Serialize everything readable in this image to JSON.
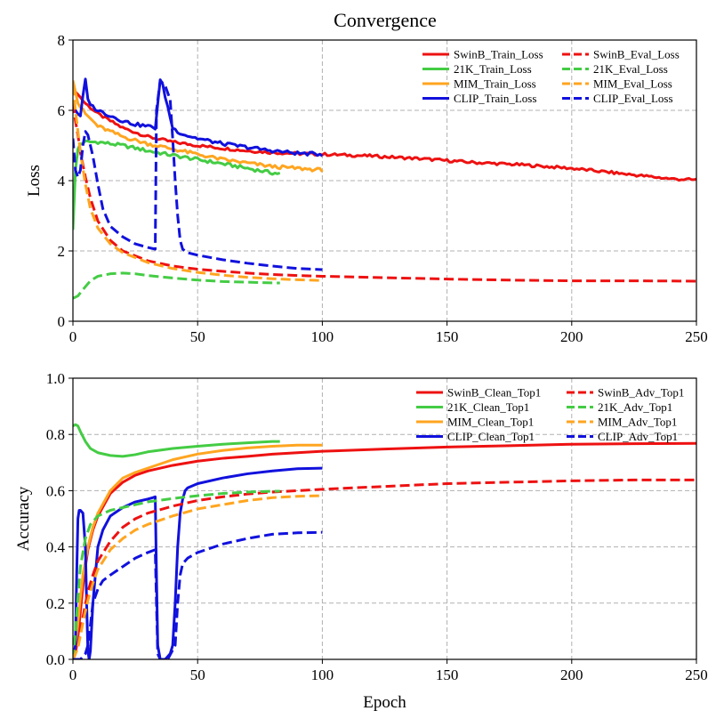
{
  "title": "Convergence",
  "colors": {
    "SwinB": "#ee1111",
    "21K": "#44cc44",
    "MIM": "#ffa520",
    "CLIP": "#1111dd"
  },
  "chart_data": [
    {
      "type": "line",
      "title": "Convergence",
      "xlabel": "",
      "ylabel": "Loss",
      "xlim": [
        0,
        250
      ],
      "ylim": [
        0,
        8
      ],
      "xticks": [
        0,
        50,
        100,
        150,
        200,
        250
      ],
      "yticks": [
        0,
        2,
        4,
        6,
        8
      ],
      "grid": true,
      "legend_position": "top-right",
      "series": [
        {
          "name": "SwinB_Train_Loss",
          "model": "SwinB",
          "style": "solid",
          "x": [
            0,
            2,
            5,
            10,
            20,
            30,
            40,
            50,
            60,
            70,
            80,
            90,
            100,
            120,
            140,
            160,
            180,
            200,
            220,
            240,
            250
          ],
          "y": [
            6.6,
            6.45,
            6.2,
            5.9,
            5.5,
            5.25,
            5.1,
            5.0,
            4.92,
            4.85,
            4.8,
            4.77,
            4.75,
            4.7,
            4.62,
            4.52,
            4.45,
            4.35,
            4.2,
            4.05,
            4.02
          ],
          "noise": 0.04
        },
        {
          "name": "21K_Train_Loss",
          "model": "21K",
          "style": "solid",
          "x": [
            0,
            1,
            2,
            3,
            5,
            10,
            20,
            30,
            40,
            50,
            60,
            70,
            80,
            83
          ],
          "y": [
            2.6,
            4.3,
            4.9,
            5.05,
            5.1,
            5.1,
            5.0,
            4.85,
            4.72,
            4.6,
            4.48,
            4.35,
            4.22,
            4.2
          ],
          "noise": 0.05
        },
        {
          "name": "MIM_Train_Loss",
          "model": "MIM",
          "style": "solid",
          "x": [
            0,
            2,
            5,
            10,
            20,
            30,
            40,
            50,
            60,
            70,
            80,
            90,
            100
          ],
          "y": [
            6.85,
            6.2,
            5.9,
            5.55,
            5.25,
            5.05,
            4.9,
            4.75,
            4.6,
            4.5,
            4.4,
            4.35,
            4.3
          ],
          "noise": 0.05
        },
        {
          "name": "CLIP_Train_Loss",
          "model": "CLIP",
          "style": "solid",
          "x": [
            0,
            1,
            2,
            3,
            4,
            5,
            6,
            8,
            10,
            15,
            20,
            25,
            30,
            33,
            34,
            35,
            36,
            38,
            40,
            42,
            45,
            50,
            60,
            70,
            80,
            90,
            100
          ],
          "y": [
            6.1,
            6.0,
            5.9,
            5.8,
            6.4,
            6.85,
            6.3,
            6.1,
            6.0,
            5.85,
            5.7,
            5.6,
            5.55,
            5.5,
            6.2,
            6.85,
            6.7,
            6.1,
            5.5,
            5.4,
            5.3,
            5.2,
            5.05,
            4.95,
            4.85,
            4.78,
            4.75
          ],
          "noise": 0.05
        },
        {
          "name": "SwinB_Eval_Loss",
          "model": "SwinB",
          "style": "dashed",
          "x": [
            0,
            1,
            2,
            3,
            5,
            7,
            10,
            15,
            20,
            30,
            40,
            50,
            60,
            70,
            80,
            90,
            100,
            125,
            150,
            175,
            200,
            225,
            250
          ],
          "y": [
            6.2,
            5.7,
            5.3,
            4.8,
            4.1,
            3.5,
            2.85,
            2.3,
            2.0,
            1.72,
            1.57,
            1.48,
            1.42,
            1.37,
            1.33,
            1.3,
            1.28,
            1.24,
            1.2,
            1.17,
            1.15,
            1.15,
            1.14
          ]
        },
        {
          "name": "21K_Eval_Loss",
          "model": "21K",
          "style": "dashed",
          "x": [
            0,
            2,
            4,
            7,
            10,
            15,
            20,
            25,
            30,
            40,
            50,
            60,
            70,
            80,
            83
          ],
          "y": [
            0.65,
            0.72,
            0.9,
            1.15,
            1.28,
            1.35,
            1.37,
            1.35,
            1.3,
            1.23,
            1.17,
            1.13,
            1.11,
            1.09,
            1.09
          ]
        },
        {
          "name": "MIM_Eval_Loss",
          "model": "MIM",
          "style": "dashed",
          "x": [
            0,
            1,
            2,
            3,
            5,
            7,
            10,
            15,
            20,
            30,
            40,
            50,
            60,
            70,
            80,
            90,
            100
          ],
          "y": [
            6.7,
            6.0,
            5.4,
            4.8,
            3.9,
            3.2,
            2.65,
            2.2,
            1.95,
            1.67,
            1.5,
            1.39,
            1.31,
            1.25,
            1.21,
            1.18,
            1.16
          ]
        },
        {
          "name": "CLIP_Eval_Loss",
          "model": "CLIP",
          "style": "dashed",
          "x": [
            0,
            1,
            2,
            3,
            4,
            5,
            6,
            7,
            8,
            10,
            12,
            15,
            20,
            25,
            30,
            33,
            33.5,
            35,
            37,
            39,
            40,
            41,
            42,
            43,
            44,
            46,
            50,
            60,
            70,
            80,
            90,
            100
          ],
          "y": [
            5.2,
            4.3,
            4.1,
            4.3,
            5.0,
            5.4,
            5.3,
            5.0,
            4.7,
            3.9,
            3.2,
            2.7,
            2.4,
            2.2,
            2.1,
            2.05,
            6.0,
            6.85,
            6.7,
            6.3,
            5.2,
            4.0,
            3.0,
            2.3,
            2.05,
            1.95,
            1.88,
            1.75,
            1.65,
            1.57,
            1.5,
            1.47
          ]
        }
      ]
    },
    {
      "type": "line",
      "title": "",
      "xlabel": "Epoch",
      "ylabel": "Accuracy",
      "xlim": [
        0,
        250
      ],
      "ylim": [
        0,
        1.0
      ],
      "xticks": [
        0,
        50,
        100,
        150,
        200,
        250
      ],
      "yticks": [
        0.0,
        0.2,
        0.4,
        0.6,
        0.8,
        1.0
      ],
      "grid": true,
      "legend_position": "top-right",
      "series": [
        {
          "name": "SwinB_Clean_Top1",
          "model": "SwinB",
          "style": "solid",
          "x": [
            0,
            1,
            2,
            3,
            4,
            5,
            6,
            8,
            10,
            15,
            20,
            25,
            30,
            40,
            50,
            60,
            70,
            80,
            90,
            100,
            125,
            150,
            175,
            200,
            225,
            250
          ],
          "y": [
            0.0,
            0.02,
            0.08,
            0.17,
            0.26,
            0.33,
            0.39,
            0.46,
            0.51,
            0.59,
            0.63,
            0.655,
            0.67,
            0.69,
            0.705,
            0.715,
            0.722,
            0.73,
            0.735,
            0.74,
            0.748,
            0.755,
            0.76,
            0.765,
            0.767,
            0.768
          ]
        },
        {
          "name": "21K_Clean_Top1",
          "model": "21K",
          "style": "solid",
          "x": [
            0,
            1,
            2,
            3,
            5,
            7,
            10,
            15,
            20,
            25,
            30,
            40,
            50,
            60,
            70,
            80,
            83
          ],
          "y": [
            0.83,
            0.835,
            0.83,
            0.81,
            0.775,
            0.75,
            0.735,
            0.725,
            0.722,
            0.728,
            0.738,
            0.75,
            0.758,
            0.765,
            0.77,
            0.775,
            0.775
          ]
        },
        {
          "name": "MIM_Clean_Top1",
          "model": "MIM",
          "style": "solid",
          "x": [
            0,
            1,
            2,
            3,
            4,
            6,
            8,
            10,
            15,
            20,
            25,
            30,
            40,
            50,
            60,
            70,
            80,
            90,
            100
          ],
          "y": [
            0.0,
            0.05,
            0.13,
            0.22,
            0.3,
            0.4,
            0.47,
            0.52,
            0.6,
            0.645,
            0.665,
            0.68,
            0.71,
            0.73,
            0.743,
            0.752,
            0.758,
            0.762,
            0.762
          ]
        },
        {
          "name": "CLIP_Clean_Top1",
          "model": "CLIP",
          "style": "solid",
          "x": [
            0,
            1,
            1.5,
            2,
            2.5,
            3,
            4,
            5,
            5.5,
            6,
            6.5,
            7,
            8,
            10,
            12,
            15,
            20,
            25,
            30,
            32,
            33,
            33.5,
            34,
            35,
            36,
            37,
            38,
            39,
            40,
            41,
            42,
            43,
            44,
            45,
            46,
            50,
            60,
            70,
            80,
            90,
            100
          ],
          "y": [
            0.0,
            0.05,
            0.3,
            0.5,
            0.53,
            0.53,
            0.52,
            0.4,
            0.2,
            0.03,
            0.0,
            0.03,
            0.2,
            0.4,
            0.46,
            0.51,
            0.54,
            0.56,
            0.57,
            0.575,
            0.578,
            0.3,
            0.05,
            0.0,
            0.0,
            0.0,
            0.01,
            0.02,
            0.05,
            0.2,
            0.4,
            0.52,
            0.57,
            0.6,
            0.61,
            0.625,
            0.645,
            0.66,
            0.67,
            0.678,
            0.68
          ]
        },
        {
          "name": "SwinB_Adv_Top1",
          "model": "SwinB",
          "style": "dashed",
          "x": [
            0,
            2,
            4,
            6,
            8,
            10,
            15,
            20,
            25,
            30,
            40,
            50,
            60,
            70,
            80,
            90,
            100,
            125,
            150,
            175,
            200,
            225,
            250
          ],
          "y": [
            0.0,
            0.05,
            0.15,
            0.24,
            0.3,
            0.35,
            0.42,
            0.47,
            0.5,
            0.52,
            0.545,
            0.565,
            0.578,
            0.588,
            0.595,
            0.6,
            0.605,
            0.615,
            0.625,
            0.63,
            0.635,
            0.638,
            0.638
          ]
        },
        {
          "name": "21K_Adv_Top1",
          "model": "21K",
          "style": "dashed",
          "x": [
            0,
            1,
            2,
            3,
            5,
            7,
            10,
            15,
            20,
            25,
            30,
            40,
            50,
            60,
            70,
            80,
            83
          ],
          "y": [
            0.0,
            0.1,
            0.22,
            0.33,
            0.43,
            0.48,
            0.51,
            0.53,
            0.54,
            0.55,
            0.56,
            0.572,
            0.582,
            0.59,
            0.595,
            0.598,
            0.598
          ]
        },
        {
          "name": "MIM_Adv_Top1",
          "model": "MIM",
          "style": "dashed",
          "x": [
            0,
            2,
            4,
            6,
            8,
            10,
            15,
            20,
            25,
            30,
            40,
            50,
            60,
            70,
            80,
            90,
            100
          ],
          "y": [
            0.0,
            0.04,
            0.13,
            0.21,
            0.27,
            0.32,
            0.39,
            0.43,
            0.46,
            0.48,
            0.51,
            0.535,
            0.55,
            0.565,
            0.575,
            0.58,
            0.582
          ]
        },
        {
          "name": "CLIP_Adv_Top1",
          "model": "CLIP",
          "style": "dashed",
          "x": [
            0,
            3,
            4,
            5,
            6,
            7,
            8,
            10,
            12,
            15,
            20,
            25,
            30,
            33,
            33.5,
            34,
            35,
            38,
            41,
            42,
            43,
            44,
            45,
            46,
            50,
            60,
            70,
            80,
            90,
            100
          ],
          "y": [
            0.0,
            0.0,
            0.01,
            0.02,
            0.05,
            0.12,
            0.2,
            0.25,
            0.28,
            0.3,
            0.33,
            0.36,
            0.38,
            0.39,
            0.2,
            0.02,
            0.0,
            0.0,
            0.05,
            0.2,
            0.3,
            0.34,
            0.35,
            0.36,
            0.38,
            0.41,
            0.43,
            0.445,
            0.45,
            0.452
          ]
        }
      ]
    }
  ]
}
